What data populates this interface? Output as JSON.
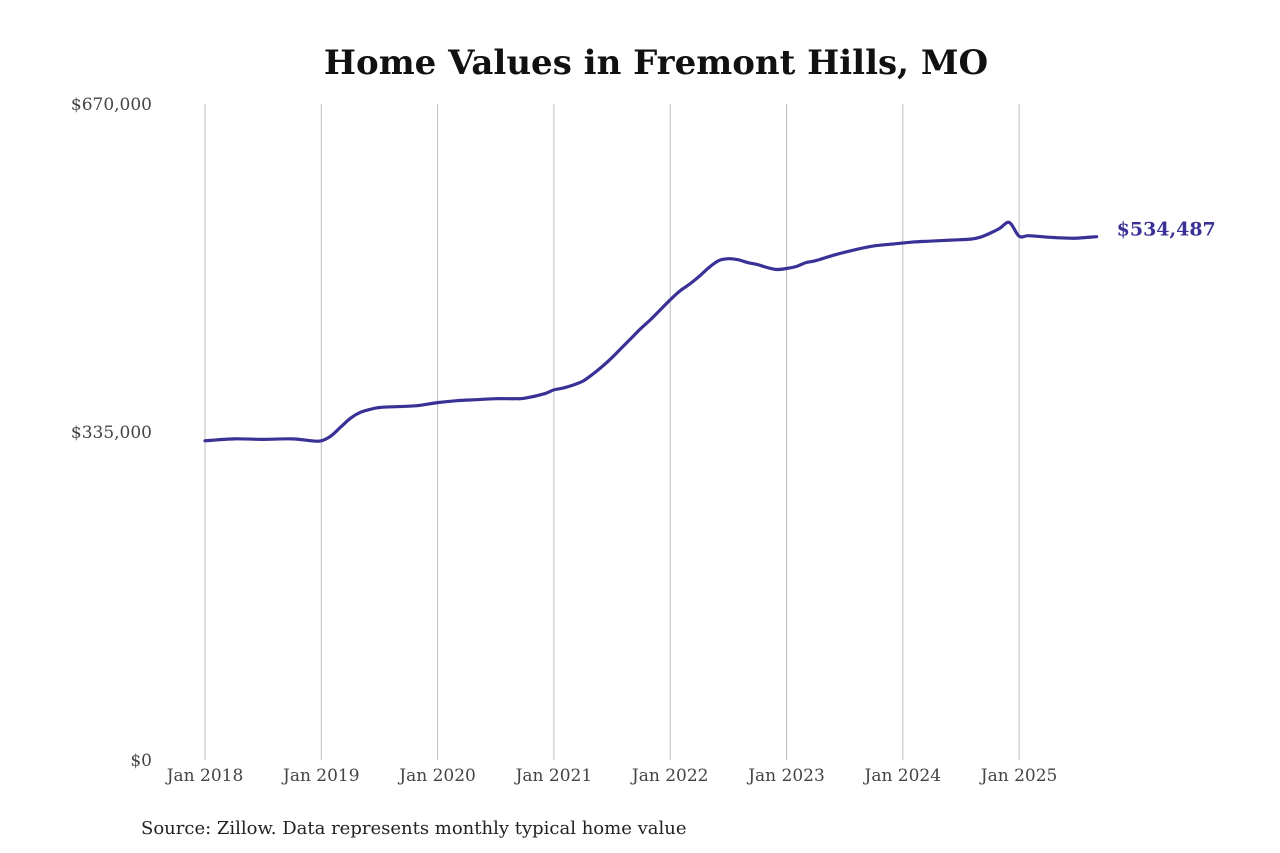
{
  "chart_data": {
    "type": "line",
    "title": "Home Values in Fremont Hills, MO",
    "source": "Source: Zillow. Data represents monthly typical home value",
    "xlabel": "",
    "ylabel": "",
    "ylim": [
      0,
      670000
    ],
    "y_ticks": [
      {
        "value": 0,
        "label": "$0"
      },
      {
        "value": 335000,
        "label": "$335,000"
      },
      {
        "value": 670000,
        "label": "$670,000"
      }
    ],
    "x_ticks": [
      {
        "value": "2018-01",
        "label": "Jan 2018"
      },
      {
        "value": "2019-01",
        "label": "Jan 2019"
      },
      {
        "value": "2020-01",
        "label": "Jan 2020"
      },
      {
        "value": "2021-01",
        "label": "Jan 2021"
      },
      {
        "value": "2022-01",
        "label": "Jan 2022"
      },
      {
        "value": "2023-01",
        "label": "Jan 2023"
      },
      {
        "value": "2024-01",
        "label": "Jan 2024"
      },
      {
        "value": "2025-01",
        "label": "Jan 2025"
      }
    ],
    "grid": "vertical",
    "line_color": "#3a3196",
    "end_label": "$534,487",
    "series": [
      {
        "x": [
          "2018-01",
          "2018-04",
          "2018-07",
          "2018-10",
          "2018-12",
          "2019-01",
          "2019-02",
          "2019-03",
          "2019-04",
          "2019-05",
          "2019-06",
          "2019-07",
          "2019-09",
          "2019-11",
          "2020-01",
          "2020-03",
          "2020-05",
          "2020-07",
          "2020-09",
          "2020-10",
          "2020-12",
          "2021-01",
          "2021-02",
          "2021-03",
          "2021-04",
          "2021-05",
          "2021-06",
          "2021-07",
          "2021-08",
          "2021-09",
          "2021-10",
          "2021-11",
          "2021-12",
          "2022-01",
          "2022-02",
          "2022-03",
          "2022-04",
          "2022-05",
          "2022-06",
          "2022-07",
          "2022-08",
          "2022-09",
          "2022-10",
          "2022-11",
          "2022-12",
          "2023-01",
          "2023-02",
          "2023-03",
          "2023-04",
          "2023-06",
          "2023-08",
          "2023-10",
          "2023-12",
          "2024-02",
          "2024-04",
          "2024-06",
          "2024-08",
          "2024-09",
          "2024-10",
          "2024-11",
          "2024-12",
          "2025-01",
          "2025-02",
          "2025-04",
          "2025-06",
          "2025-07",
          "2025-09"
        ],
        "y": [
          326000,
          328000,
          327500,
          328000,
          326000,
          326000,
          331000,
          340000,
          349000,
          355000,
          358000,
          360000,
          361000,
          362000,
          365000,
          367000,
          368000,
          369000,
          369000,
          369500,
          374000,
          378000,
          380000,
          383000,
          387000,
          394000,
          402000,
          411000,
          421000,
          431000,
          441000,
          450000,
          460000,
          470000,
          479000,
          486000,
          494000,
          503000,
          510000,
          512000,
          511000,
          508000,
          506000,
          503000,
          501000,
          502000,
          504000,
          508000,
          510000,
          516000,
          521000,
          525000,
          527000,
          529000,
          530000,
          531000,
          532000,
          534000,
          538000,
          543000,
          549000,
          535000,
          535500,
          534000,
          533000,
          533000,
          534487
        ]
      }
    ]
  }
}
